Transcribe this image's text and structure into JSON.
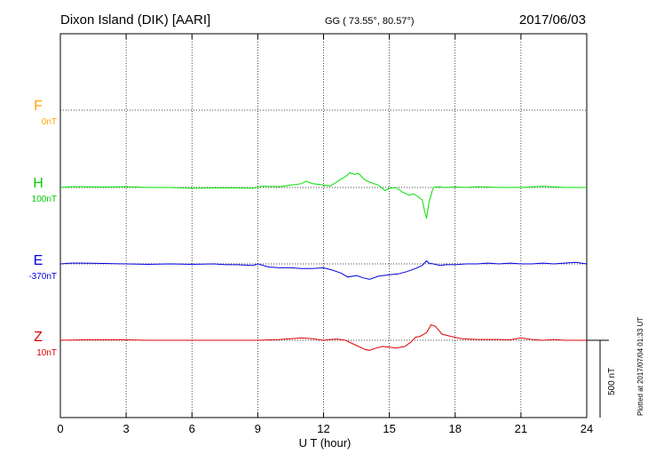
{
  "header": {
    "station": "Dixon Island (DIK)  [AARI]",
    "coords": "GG ( 73.55°,  80.57°)",
    "date": "2017/06/03"
  },
  "footer": {
    "plotted": "Plotted at 2017/07/04 01:33 UT"
  },
  "colors": {
    "F": "#ffa500",
    "H": "#00e000",
    "E": "#0000dd",
    "Z": "#dd0000",
    "grid": "#000000"
  },
  "chart_data": {
    "type": "line",
    "title": "Dixon Island (DIK)  [AARI]",
    "xlabel": "U T (hour)",
    "xlim": [
      0,
      24
    ],
    "x_ticks": [
      "0",
      "3",
      "6",
      "9",
      "12",
      "15",
      "18",
      "21",
      "24"
    ],
    "scale_bar": "500 nT",
    "series": [
      {
        "name": "F",
        "baseline_label": "0nT",
        "x": [],
        "y": []
      },
      {
        "name": "H",
        "baseline_label": "100nT",
        "x": [
          0,
          0.5,
          1,
          2,
          3,
          4,
          5,
          6,
          7,
          8,
          8.8,
          9.2,
          10,
          10.5,
          11,
          11.2,
          11.5,
          11.8,
          12,
          12.3,
          12.6,
          12.8,
          13,
          13.2,
          13.4,
          13.6,
          13.8,
          14,
          14.2,
          14.5,
          14.8,
          15,
          15.3,
          15.6,
          15.9,
          16.1,
          16.3,
          16.5,
          16.6,
          16.7,
          16.8,
          16.9,
          17.0,
          17.2,
          17.5,
          18,
          18.5,
          19,
          20,
          21,
          22,
          23,
          24
        ],
        "y": [
          0,
          5,
          5,
          3,
          5,
          0,
          0,
          -5,
          -3,
          -3,
          -5,
          8,
          5,
          15,
          25,
          40,
          25,
          20,
          15,
          10,
          35,
          55,
          70,
          95,
          85,
          90,
          60,
          40,
          30,
          15,
          -20,
          -5,
          0,
          -30,
          -50,
          -40,
          -60,
          -80,
          -150,
          -200,
          -100,
          -50,
          0,
          5,
          0,
          3,
          0,
          5,
          0,
          0,
          8,
          0,
          0
        ]
      },
      {
        "name": "E",
        "baseline_label": "-370nT",
        "x": [
          0,
          0.5,
          1,
          2,
          3,
          4,
          5,
          6,
          7,
          7.5,
          8,
          8.8,
          9,
          9.5,
          10,
          10.5,
          11,
          11.5,
          12,
          12.4,
          12.8,
          13.1,
          13.5,
          13.8,
          14.1,
          14.5,
          15,
          15.4,
          15.8,
          16.2,
          16.5,
          16.7,
          16.8,
          17.0,
          17.3,
          17.6,
          18,
          18.5,
          19,
          19.5,
          20,
          20.5,
          21,
          21.5,
          22,
          22.5,
          23,
          23.5,
          24
        ],
        "y": [
          0,
          5,
          5,
          3,
          0,
          -3,
          0,
          -3,
          0,
          -5,
          -5,
          -10,
          0,
          -20,
          -25,
          -25,
          -30,
          -30,
          -25,
          -40,
          -60,
          -85,
          -75,
          -90,
          -100,
          -80,
          -70,
          -65,
          -50,
          -30,
          -10,
          20,
          5,
          0,
          -10,
          -5,
          -5,
          0,
          0,
          5,
          0,
          5,
          0,
          0,
          5,
          0,
          5,
          10,
          0
        ]
      },
      {
        "name": "Z",
        "baseline_label": "10nT",
        "x": [
          0,
          1,
          2,
          3,
          4,
          5,
          6,
          7,
          8,
          9,
          10,
          10.5,
          11,
          11.5,
          12,
          12.3,
          12.6,
          13,
          13.3,
          13.6,
          13.9,
          14.1,
          14.4,
          14.7,
          15,
          15.3,
          15.7,
          16,
          16.2,
          16.4,
          16.7,
          16.9,
          17.1,
          17.4,
          17.8,
          18.3,
          19,
          20,
          20.5,
          21,
          21.5,
          22,
          22.5,
          23,
          24
        ],
        "y": [
          0,
          3,
          3,
          3,
          0,
          0,
          0,
          0,
          0,
          0,
          5,
          10,
          15,
          10,
          0,
          5,
          8,
          0,
          -20,
          -40,
          -60,
          -65,
          -50,
          -40,
          -45,
          -50,
          -40,
          -10,
          20,
          25,
          50,
          100,
          90,
          40,
          25,
          10,
          5,
          5,
          3,
          15,
          5,
          0,
          5,
          0,
          0
        ]
      }
    ]
  },
  "labels": {
    "F": "F",
    "H": "H",
    "E": "E",
    "Z": "Z"
  }
}
